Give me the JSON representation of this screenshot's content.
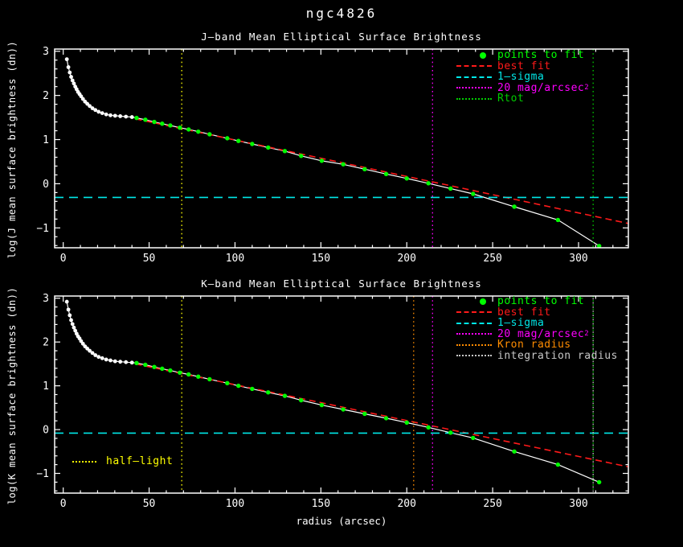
{
  "window": {
    "title": "ngc4826"
  },
  "colors": {
    "background": "#000000",
    "axes": "#ffffff",
    "profile": "#ffffff",
    "points_to_fit": "#00ff00",
    "best_fit": "#ff1a1a",
    "one_sigma": "#00e8e8",
    "isophote_20mag": "#ff00ff",
    "rtot": "#00cc00",
    "kron": "#ff8c00",
    "integration": "#c8c8c8",
    "half_light": "#ffff00"
  },
  "chart_data": [
    {
      "type": "line",
      "band": "J",
      "title": "J–band Mean Elliptical Surface Brightness",
      "ylabel": "log(J mean surface brightness (dn))",
      "xlabel": "",
      "xlim": [
        -5,
        329
      ],
      "ylim": [
        -1.45,
        3.05
      ],
      "xticks": [
        0,
        50,
        100,
        150,
        200,
        250,
        300
      ],
      "yticks": [
        -1,
        0,
        1,
        2,
        3
      ],
      "x_minor_step": 10,
      "y_minor_step": 0.2,
      "series": [
        {
          "name": "profile",
          "x": [
            2.1,
            3.0,
            3.8,
            4.6,
            5.4,
            6.2,
            7.0,
            7.8,
            8.6,
            9.5,
            10.4,
            11.5,
            12.7,
            14.0,
            15.4,
            17.0,
            18.7,
            20.6,
            22.7,
            25.0,
            27.5,
            30.2,
            33.2,
            36.5,
            40.0
          ],
          "y": [
            2.82,
            2.64,
            2.52,
            2.42,
            2.34,
            2.27,
            2.2,
            2.14,
            2.08,
            2.03,
            1.98,
            1.92,
            1.86,
            1.81,
            1.76,
            1.71,
            1.67,
            1.63,
            1.6,
            1.57,
            1.55,
            1.54,
            1.53,
            1.52,
            1.51
          ]
        },
        {
          "name": "points to fit",
          "x": [
            42.7,
            47.8,
            53.0,
            57.6,
            62.3,
            67.9,
            73.0,
            78.6,
            85.2,
            95.5,
            102,
            110,
            119.3,
            129,
            138.5,
            150.5,
            163,
            175.5,
            188,
            200,
            212.6,
            225.5,
            238.6,
            262.6,
            288,
            312
          ],
          "y": [
            1.49,
            1.45,
            1.4,
            1.36,
            1.32,
            1.27,
            1.23,
            1.18,
            1.12,
            1.03,
            0.97,
            0.9,
            0.82,
            0.74,
            0.63,
            0.52,
            0.44,
            0.33,
            0.22,
            0.12,
            0.01,
            -0.11,
            -0.23,
            -0.52,
            -0.82,
            -1.41
          ]
        }
      ],
      "fit_line": {
        "label": "best fit",
        "x1": 42,
        "y1": 1.47,
        "x2": 329,
        "y2": -0.9,
        "color": "#ff1a1a"
      },
      "sigma_line": {
        "label": "1–sigma",
        "y": -0.31,
        "color": "#00e8e8"
      },
      "vlines": [
        {
          "name": "half-light",
          "x": 69,
          "color": "#ffff00"
        },
        {
          "name": "20mag-isophote",
          "x": 215,
          "color": "#ff00ff"
        },
        {
          "name": "rtot",
          "x": 308.5,
          "color": "#00cc00"
        }
      ],
      "legend": [
        {
          "label": "points to fit",
          "color": "#00ff00",
          "swatch": "dot"
        },
        {
          "label": "best fit",
          "color": "#ff1a1a",
          "swatch": "dash"
        },
        {
          "label": "1–sigma",
          "color": "#00e8e8",
          "swatch": "dash"
        },
        {
          "label": "20 mag/arcsec",
          "sup": "2",
          "color": "#ff00ff",
          "swatch": "dots"
        },
        {
          "label": "Rtot",
          "color": "#00cc00",
          "swatch": "dots"
        }
      ]
    },
    {
      "type": "line",
      "band": "K",
      "title": "K–band Mean Elliptical Surface Brightness",
      "ylabel": "log(K mean surface brightness (dn))",
      "xlabel": "radius (arcsec)",
      "xlim": [
        -5,
        329
      ],
      "ylim": [
        -1.45,
        3.05
      ],
      "xticks": [
        0,
        50,
        100,
        150,
        200,
        250,
        300
      ],
      "yticks": [
        -1,
        0,
        1,
        2,
        3
      ],
      "x_minor_step": 10,
      "y_minor_step": 0.2,
      "series": [
        {
          "name": "profile",
          "x": [
            2.1,
            3.0,
            3.8,
            4.6,
            5.4,
            6.2,
            7.0,
            7.8,
            8.6,
            9.5,
            10.4,
            11.5,
            12.7,
            14.0,
            15.4,
            17.0,
            18.7,
            20.6,
            22.7,
            25.0,
            27.5,
            30.2,
            33.2,
            36.5,
            40.0
          ],
          "y": [
            2.92,
            2.74,
            2.61,
            2.5,
            2.41,
            2.33,
            2.26,
            2.19,
            2.13,
            2.08,
            2.02,
            1.96,
            1.9,
            1.85,
            1.8,
            1.75,
            1.7,
            1.66,
            1.63,
            1.6,
            1.58,
            1.56,
            1.55,
            1.54,
            1.53
          ]
        },
        {
          "name": "points to fit",
          "x": [
            42.7,
            47.8,
            53.0,
            57.6,
            62.3,
            67.9,
            73.0,
            78.6,
            85.2,
            95.5,
            102,
            110,
            119.3,
            129,
            138.5,
            150.5,
            163,
            175.5,
            188,
            200,
            212.6,
            225.5,
            238.6,
            262.6,
            288,
            312
          ],
          "y": [
            1.52,
            1.48,
            1.43,
            1.39,
            1.35,
            1.3,
            1.26,
            1.21,
            1.15,
            1.06,
            1.0,
            0.93,
            0.85,
            0.77,
            0.67,
            0.56,
            0.46,
            0.36,
            0.26,
            0.16,
            0.05,
            -0.07,
            -0.19,
            -0.5,
            -0.8,
            -1.2
          ]
        }
      ],
      "fit_line": {
        "label": "best fit",
        "x1": 42,
        "y1": 1.5,
        "x2": 329,
        "y2": -0.85,
        "color": "#ff1a1a"
      },
      "sigma_line": {
        "label": "1–sigma",
        "y": -0.08,
        "color": "#00e8e8"
      },
      "vlines": [
        {
          "name": "half-light",
          "x": 69,
          "color": "#ffff00"
        },
        {
          "name": "kron-radius",
          "x": 204,
          "color": "#ff8c00"
        },
        {
          "name": "20mag-isophote",
          "x": 215,
          "color": "#ff00ff"
        },
        {
          "name": "integration-radius",
          "x": 308.5,
          "color": "#c8c8c8",
          "dash_offset": 2.6
        },
        {
          "name": "rtot",
          "x": 308.5,
          "color": "#00cc00"
        }
      ],
      "legend": [
        {
          "label": "points to fit",
          "color": "#00ff00",
          "swatch": "dot"
        },
        {
          "label": "best fit",
          "color": "#ff1a1a",
          "swatch": "dash"
        },
        {
          "label": "1–sigma",
          "color": "#00e8e8",
          "swatch": "dash"
        },
        {
          "label": "20 mag/arcsec",
          "sup": "2",
          "color": "#ff00ff",
          "swatch": "dots"
        },
        {
          "label": "Kron radius",
          "color": "#ff8c00",
          "swatch": "dots"
        },
        {
          "label": "integration radius",
          "color": "#c8c8c8",
          "swatch": "dots"
        }
      ],
      "annotations": [
        {
          "label": "half–light",
          "color": "#ffff00"
        }
      ]
    }
  ]
}
